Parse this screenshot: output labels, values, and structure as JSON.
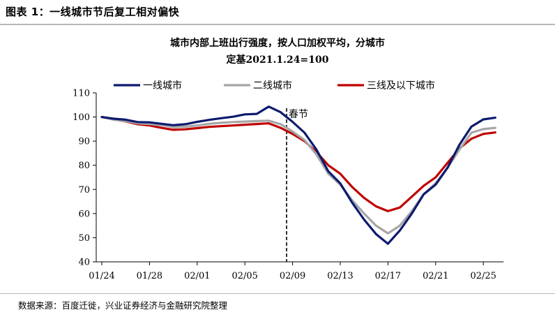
{
  "header": {
    "title": "图表 1：一线城市节后复工相对偏快"
  },
  "footer": {
    "source": "数据来源：百度迁徙，兴业证券经济与金融研究院整理"
  },
  "chart_data": {
    "type": "line",
    "title": "城市内部上班出行强度，按人口加权平均，分城市",
    "subtitle": "定基2021.1.24=100",
    "xlabel": "",
    "ylabel": "",
    "ylim": [
      40,
      110
    ],
    "yticks": [
      40,
      50,
      60,
      70,
      80,
      90,
      100,
      110
    ],
    "xtick_labels": [
      "01/24",
      "01/28",
      "02/01",
      "02/05",
      "02/09",
      "02/13",
      "02/17",
      "02/21",
      "02/25"
    ],
    "xtick_index": [
      0,
      4,
      8,
      12,
      16,
      20,
      24,
      28,
      32
    ],
    "annotation": {
      "label": "春节",
      "index": 15.5
    },
    "legend_position": "top",
    "series": [
      {
        "name": "一线城市",
        "color": "#0d1a6e",
        "values": [
          100,
          99.3,
          98.9,
          97.9,
          97.8,
          97.2,
          96.6,
          97.0,
          98.0,
          98.8,
          99.5,
          100.1,
          101.1,
          101.3,
          104.3,
          102.0,
          98.0,
          93.5,
          86.5,
          77.5,
          72.5,
          64.5,
          57.5,
          51.5,
          47.5,
          53.0,
          60.0,
          68.0,
          72.0,
          79.0,
          88.5,
          96.0,
          99.0,
          99.7
        ]
      },
      {
        "name": "二线城市",
        "color": "#a6a6a6",
        "values": [
          100,
          98.9,
          98.3,
          97.4,
          97.1,
          96.6,
          95.8,
          96.0,
          96.5,
          97.2,
          97.6,
          97.9,
          98.1,
          98.3,
          98.5,
          97.0,
          94.0,
          90.5,
          84.5,
          76.5,
          72.0,
          65.5,
          60.0,
          55.0,
          51.8,
          55.0,
          61.0,
          68.0,
          72.5,
          79.0,
          86.5,
          93.5,
          95.0,
          95.5
        ]
      },
      {
        "name": "三线及以下城市",
        "color": "#c00000",
        "values": [
          100,
          99.0,
          98.2,
          97.0,
          96.5,
          95.5,
          94.7,
          94.9,
          95.4,
          95.9,
          96.2,
          96.5,
          96.8,
          97.1,
          97.4,
          95.5,
          93.0,
          90.0,
          85.5,
          80.0,
          76.5,
          71.0,
          66.5,
          63.0,
          61.0,
          62.5,
          67.0,
          71.5,
          75.0,
          81.0,
          87.0,
          91.0,
          93.0,
          93.6
        ]
      }
    ]
  }
}
